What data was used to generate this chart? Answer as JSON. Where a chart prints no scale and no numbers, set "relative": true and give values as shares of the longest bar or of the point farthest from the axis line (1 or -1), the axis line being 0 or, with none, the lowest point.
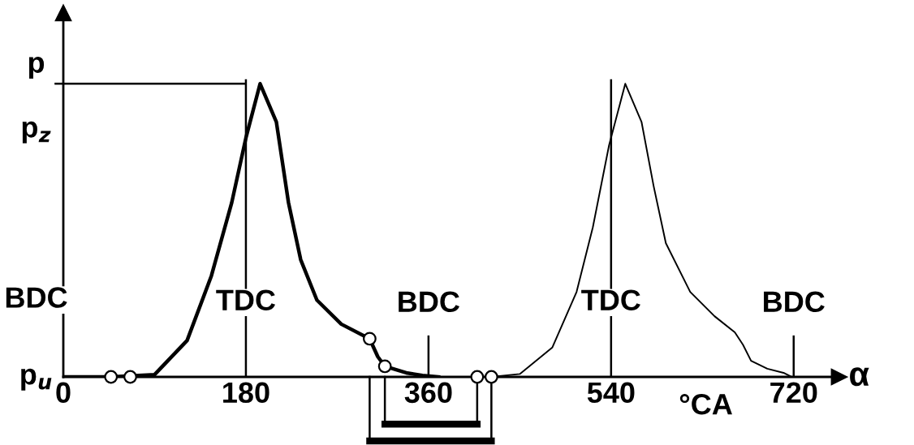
{
  "chart_data": {
    "type": "line",
    "relative": true,
    "ylabel": "p",
    "xlabel": "α",
    "xlim": [
      0,
      765
    ],
    "xticks": [
      0,
      180,
      360,
      540,
      720
    ],
    "grid": false,
    "annotations": [
      "p$_{z}$",
      "BDC",
      "p$_{u}$",
      "°CA"
    ],
    "ref_lines": [
      {
        "axis": "x",
        "value": 180,
        "label": "TDC"
      },
      {
        "axis": "x",
        "value": 360,
        "label": "BDC"
      },
      {
        "axis": "x",
        "value": 540,
        "label": "TDC"
      },
      {
        "axis": "x",
        "value": 720,
        "label": "BDC"
      },
      {
        "axis": "y",
        "value": 1
      }
    ],
    "series": [
      {
        "color": "#000000",
        "x": [
          0,
          47,
          90,
          122,
          146,
          166,
          180,
          194,
          210,
          222,
          234,
          250,
          274,
          302,
          310,
          317,
          338,
          354,
          370
        ],
        "values": [
          0,
          0,
          0.008,
          0.124,
          0.345,
          0.594,
          0.815,
          1,
          0.87,
          0.594,
          0.4,
          0.262,
          0.18,
          0.13,
          0.069,
          0.036,
          0.014,
          0.005,
          0
        ]
      },
      {
        "color": "#000000",
        "x": [
          422,
          450,
          482,
          506,
          522,
          538,
          554,
          570,
          582,
          594,
          618,
          642,
          662,
          670,
          678,
          694,
          710,
          718
        ],
        "values": [
          0,
          0.01,
          0.1,
          0.29,
          0.51,
          0.79,
          1,
          0.87,
          0.65,
          0.456,
          0.29,
          0.207,
          0.152,
          0.11,
          0.055,
          0.028,
          0.014,
          0
        ]
      },
      {
        "type": "scatter",
        "marker": "circle",
        "color": "#000000",
        "x": [
          47,
          66,
          302,
          317,
          408,
          422
        ],
        "values": [
          0,
          0,
          0.13,
          0.036,
          0,
          0
        ]
      }
    ]
  }
}
